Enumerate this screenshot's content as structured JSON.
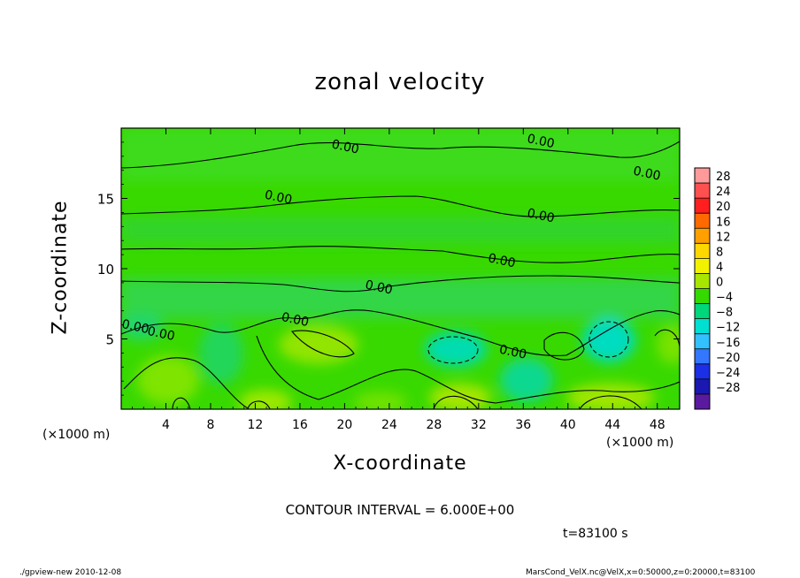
{
  "chart_data": {
    "type": "heatmap",
    "title": "zonal velocity",
    "xlabel": "X-coordinate",
    "ylabel": "Z-coordinate",
    "x_unit": "(×1000 m)",
    "y_unit": "(×1000 m)",
    "xlim": [
      0,
      50
    ],
    "ylim": [
      0,
      20
    ],
    "x_ticks": [
      4,
      8,
      12,
      16,
      20,
      24,
      28,
      32,
      36,
      40,
      44,
      48
    ],
    "y_ticks": [
      5,
      10,
      15
    ],
    "colorbar": {
      "levels": [
        28,
        24,
        20,
        16,
        12,
        8,
        4,
        0,
        -4,
        -8,
        -12,
        -16,
        -20,
        -24,
        -28
      ],
      "colors": [
        "#ff9a9a",
        "#ff5050",
        "#ff1f1f",
        "#ff6a00",
        "#ff9f00",
        "#ffd700",
        "#f2f200",
        "#a8e600",
        "#34d900",
        "#00d67a",
        "#00dfd0",
        "#33c0ff",
        "#3377ff",
        "#1a2fe6",
        "#1a18b0",
        "#5a1aa0"
      ]
    },
    "contour_interval": "CONTOUR INTERVAL = 6.000E+00",
    "contour_labels": [
      {
        "text": "0.00",
        "x": 20,
        "z": 18.4
      },
      {
        "text": "0.00",
        "x": 37.5,
        "z": 18.8
      },
      {
        "text": "0.00",
        "x": 47,
        "z": 16.5
      },
      {
        "text": "0.00",
        "x": 14,
        "z": 14.8
      },
      {
        "text": "0.00",
        "x": 37.5,
        "z": 13.5
      },
      {
        "text": "0.00",
        "x": 34,
        "z": 10.3
      },
      {
        "text": "0.00",
        "x": 23,
        "z": 8.4
      },
      {
        "text": "0.00",
        "x": 15.5,
        "z": 6.1
      },
      {
        "text": "0.00",
        "x": 1.2,
        "z": 5.6
      },
      {
        "text": "0.00",
        "x": 3.5,
        "z": 5.1
      },
      {
        "text": "0.00",
        "x": 35,
        "z": 3.8
      }
    ]
  },
  "time_label": "t=83100 s",
  "footer_left": "./gpview-new  2010-12-08",
  "footer_right": "MarsCond_VelX.nc@VelX,x=0:50000,z=0:20000,t=83100"
}
